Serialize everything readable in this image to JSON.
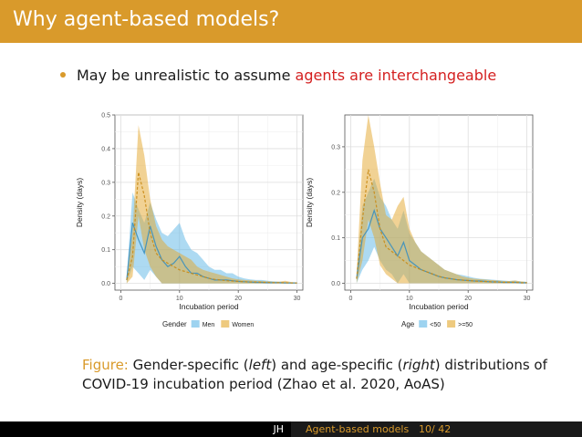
{
  "slide": {
    "title": "Why agent-based models?",
    "bullet_text": "May be unrealistic to assume ",
    "bullet_highlight": "agents are interchangeable",
    "caption_label": "Figure:",
    "caption_part1": " Gender-specific (",
    "caption_left": "left",
    "caption_part2": ") and age-specific (",
    "caption_right": "right",
    "caption_part3": ") distributions of COVID-19 incubation period (Zhao et al. 2020, AoAS)",
    "footer_author": "JH",
    "footer_title": "Agent-based models",
    "footer_page": "10/ 42"
  },
  "colors": {
    "accent": "#d99a2b",
    "highlight": "#d42020",
    "series_blue": "#5bb5e6",
    "series_orange": "#e3a62a"
  },
  "chart_data": [
    {
      "type": "area",
      "title": "",
      "xlabel": "Incubation period",
      "ylabel": "Density (days)",
      "xlim": [
        -1,
        31
      ],
      "ylim": [
        -0.02,
        0.5
      ],
      "xticks": [
        0,
        10,
        20,
        30
      ],
      "yticks": [
        0.0,
        0.1,
        0.2,
        0.3,
        0.4,
        0.5
      ],
      "ytick_labels": [
        "0.0",
        "0.1",
        "0.2",
        "0.3",
        "0.4",
        "0.5"
      ],
      "legend_title": "Gender",
      "legend_position": "bottom",
      "x": [
        1,
        2,
        3,
        4,
        5,
        6,
        7,
        8,
        9,
        10,
        11,
        12,
        13,
        14,
        15,
        16,
        17,
        18,
        19,
        20,
        21,
        22,
        23,
        24,
        25,
        26,
        27,
        28,
        29,
        30
      ],
      "series": [
        {
          "name": "Men",
          "color": "#5bb5e6",
          "mean": [
            0.01,
            0.18,
            0.13,
            0.09,
            0.17,
            0.11,
            0.07,
            0.05,
            0.06,
            0.08,
            0.05,
            0.03,
            0.03,
            0.02,
            0.015,
            0.01,
            0.01,
            0.01,
            0.008,
            0.006,
            0.005,
            0.004,
            0.003,
            0.003,
            0.002,
            0.002,
            0.002,
            0.001,
            0.001,
            0.001
          ],
          "lower": [
            0.0,
            0.05,
            0.03,
            0.01,
            0.04,
            0.02,
            0.0,
            0.0,
            0.0,
            0.0,
            0.0,
            0.0,
            0.0,
            0.0,
            0.0,
            0.0,
            0.0,
            0.0,
            0.0,
            0.0,
            0.0,
            0.0,
            0.0,
            0.0,
            0.0,
            0.0,
            0.0,
            0.0,
            0.0,
            0.0
          ],
          "upper": [
            0.02,
            0.27,
            0.22,
            0.18,
            0.24,
            0.19,
            0.15,
            0.14,
            0.16,
            0.18,
            0.13,
            0.1,
            0.09,
            0.07,
            0.05,
            0.04,
            0.04,
            0.03,
            0.03,
            0.02,
            0.015,
            0.012,
            0.01,
            0.01,
            0.008,
            0.006,
            0.005,
            0.004,
            0.003,
            0.003
          ]
        },
        {
          "name": "Women",
          "color": "#e3a62a",
          "mean": [
            0.01,
            0.08,
            0.33,
            0.26,
            0.15,
            0.09,
            0.07,
            0.06,
            0.05,
            0.04,
            0.035,
            0.03,
            0.025,
            0.02,
            0.015,
            0.012,
            0.01,
            0.008,
            0.007,
            0.006,
            0.005,
            0.004,
            0.004,
            0.003,
            0.003,
            0.002,
            0.002,
            0.002,
            0.001,
            0.001
          ],
          "lower": [
            0.0,
            0.02,
            0.2,
            0.1,
            0.05,
            0.02,
            0.0,
            0.0,
            0.0,
            0.0,
            0.0,
            0.0,
            0.0,
            0.0,
            0.0,
            0.0,
            0.0,
            0.0,
            0.0,
            0.0,
            0.0,
            0.0,
            0.0,
            0.0,
            0.0,
            0.0,
            0.0,
            0.0,
            0.0,
            0.0
          ],
          "upper": [
            0.02,
            0.15,
            0.47,
            0.38,
            0.25,
            0.17,
            0.13,
            0.11,
            0.1,
            0.09,
            0.08,
            0.07,
            0.05,
            0.04,
            0.035,
            0.03,
            0.025,
            0.02,
            0.015,
            0.012,
            0.01,
            0.009,
            0.008,
            0.007,
            0.006,
            0.005,
            0.005,
            0.008,
            0.004,
            0.003
          ]
        }
      ]
    },
    {
      "type": "area",
      "title": "",
      "xlabel": "Incubation period",
      "ylabel": "Density (days)",
      "xlim": [
        -1,
        31
      ],
      "ylim": [
        -0.015,
        0.37
      ],
      "xticks": [
        0,
        10,
        20,
        30
      ],
      "yticks": [
        0.0,
        0.1,
        0.2,
        0.3
      ],
      "ytick_labels": [
        "0.0",
        "0.1",
        "0.2",
        "0.3"
      ],
      "legend_title": "Age",
      "legend_position": "bottom",
      "x": [
        1,
        2,
        3,
        4,
        5,
        6,
        7,
        8,
        9,
        10,
        11,
        12,
        13,
        14,
        15,
        16,
        17,
        18,
        19,
        20,
        21,
        22,
        23,
        24,
        25,
        26,
        27,
        28,
        29,
        30
      ],
      "series": [
        {
          "name": "<50",
          "color": "#5bb5e6",
          "mean": [
            0.01,
            0.1,
            0.12,
            0.16,
            0.12,
            0.1,
            0.08,
            0.06,
            0.09,
            0.05,
            0.04,
            0.03,
            0.025,
            0.02,
            0.015,
            0.012,
            0.01,
            0.008,
            0.007,
            0.006,
            0.005,
            0.005,
            0.004,
            0.003,
            0.003,
            0.002,
            0.002,
            0.002,
            0.001,
            0.001
          ],
          "lower": [
            0.0,
            0.03,
            0.05,
            0.08,
            0.05,
            0.03,
            0.02,
            0.0,
            0.02,
            0.0,
            0.0,
            0.0,
            0.0,
            0.0,
            0.0,
            0.0,
            0.0,
            0.0,
            0.0,
            0.0,
            0.0,
            0.0,
            0.0,
            0.0,
            0.0,
            0.0,
            0.0,
            0.0,
            0.0,
            0.0
          ],
          "upper": [
            0.02,
            0.17,
            0.2,
            0.23,
            0.19,
            0.17,
            0.14,
            0.12,
            0.16,
            0.11,
            0.09,
            0.07,
            0.06,
            0.05,
            0.04,
            0.03,
            0.025,
            0.02,
            0.018,
            0.015,
            0.012,
            0.01,
            0.009,
            0.008,
            0.007,
            0.006,
            0.005,
            0.006,
            0.004,
            0.003
          ]
        },
        {
          "name": ">=50",
          "color": "#e3a62a",
          "mean": [
            0.01,
            0.14,
            0.25,
            0.2,
            0.12,
            0.08,
            0.07,
            0.06,
            0.05,
            0.04,
            0.035,
            0.03,
            0.025,
            0.02,
            0.015,
            0.012,
            0.01,
            0.008,
            0.007,
            0.006,
            0.005,
            0.004,
            0.004,
            0.003,
            0.003,
            0.002,
            0.002,
            0.002,
            0.001,
            0.001
          ],
          "lower": [
            0.0,
            0.05,
            0.14,
            0.1,
            0.04,
            0.02,
            0.01,
            0.0,
            0.0,
            0.0,
            0.0,
            0.0,
            0.0,
            0.0,
            0.0,
            0.0,
            0.0,
            0.0,
            0.0,
            0.0,
            0.0,
            0.0,
            0.0,
            0.0,
            0.0,
            0.0,
            0.0,
            0.0,
            0.0,
            0.0
          ],
          "upper": [
            0.02,
            0.27,
            0.37,
            0.3,
            0.22,
            0.15,
            0.14,
            0.17,
            0.19,
            0.12,
            0.09,
            0.07,
            0.06,
            0.05,
            0.04,
            0.03,
            0.025,
            0.02,
            0.015,
            0.012,
            0.01,
            0.009,
            0.008,
            0.007,
            0.006,
            0.005,
            0.005,
            0.006,
            0.004,
            0.003
          ]
        }
      ]
    }
  ]
}
